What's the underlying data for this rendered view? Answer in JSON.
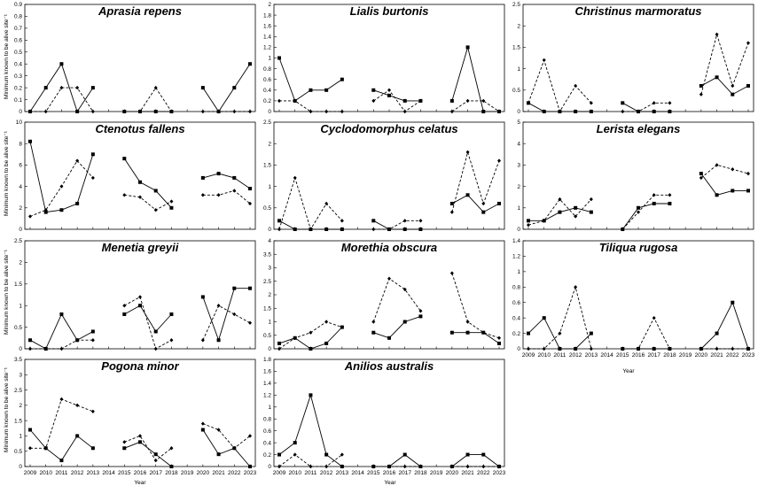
{
  "figure": {
    "ylabel": "Minimum known to be alive site⁻¹",
    "xlabel": "Year"
  },
  "chart_data": [
    {
      "type": "line",
      "title": "Aprasia repens",
      "x": [
        2009,
        2010,
        2011,
        2012,
        2013,
        2014,
        2015,
        2016,
        2017,
        2018,
        2019,
        2020,
        2021,
        2022,
        2023
      ],
      "ylim": [
        0,
        0.9
      ],
      "yticks": [
        0,
        0.1,
        0.2,
        0.3,
        0.4,
        0.5,
        0.6,
        0.7,
        0.8,
        0.9
      ],
      "xticks_shown": false,
      "series": [
        {
          "style": "solid-square",
          "values": [
            0,
            0.2,
            0.4,
            0,
            0.2,
            null,
            0,
            0,
            0,
            0,
            null,
            0.2,
            0,
            0.2,
            0.4
          ]
        },
        {
          "style": "dashed-diamond",
          "values": [
            0,
            0,
            0.2,
            0.2,
            0,
            null,
            0,
            0,
            0.2,
            0,
            null,
            0,
            0,
            0,
            0
          ]
        }
      ]
    },
    {
      "type": "line",
      "title": "Lialis burtonis",
      "x": [
        2009,
        2010,
        2011,
        2012,
        2013,
        2014,
        2015,
        2016,
        2017,
        2018,
        2019,
        2020,
        2021,
        2022,
        2023
      ],
      "ylim": [
        0,
        2
      ],
      "yticks": [
        0,
        0.2,
        0.4,
        0.6,
        0.8,
        1,
        1.2,
        1.4,
        1.6,
        1.8,
        2
      ],
      "xticks_shown": false,
      "series": [
        {
          "style": "solid-square",
          "values": [
            1,
            0.2,
            0.4,
            0.4,
            0.6,
            null,
            0.4,
            0.3,
            0.2,
            0.2,
            null,
            0.2,
            1.2,
            0,
            0
          ]
        },
        {
          "style": "dashed-diamond",
          "values": [
            0.2,
            0.2,
            0,
            0,
            0,
            null,
            0.2,
            0.4,
            0,
            0.2,
            null,
            0,
            0.2,
            0.2,
            0
          ]
        }
      ]
    },
    {
      "type": "line",
      "title": "Christinus marmoratus",
      "x": [
        2009,
        2010,
        2011,
        2012,
        2013,
        2014,
        2015,
        2016,
        2017,
        2018,
        2019,
        2020,
        2021,
        2022,
        2023
      ],
      "ylim": [
        0,
        2.5
      ],
      "yticks": [
        0,
        0.5,
        1,
        1.5,
        2,
        2.5
      ],
      "xticks_shown": false,
      "series": [
        {
          "style": "solid-square",
          "values": [
            0.2,
            0,
            0,
            0,
            0,
            null,
            0.2,
            0,
            0,
            0,
            null,
            0.6,
            0.8,
            0.4,
            0.6
          ]
        },
        {
          "style": "dashed-diamond",
          "values": [
            0.2,
            1.2,
            0,
            0.6,
            0.2,
            null,
            0,
            0,
            0.2,
            0.2,
            null,
            0.4,
            1.8,
            0.6,
            1.6
          ]
        }
      ]
    },
    {
      "type": "line",
      "title": "Ctenotus fallens",
      "x": [
        2009,
        2010,
        2011,
        2012,
        2013,
        2014,
        2015,
        2016,
        2017,
        2018,
        2019,
        2020,
        2021,
        2022,
        2023
      ],
      "ylim": [
        0,
        10
      ],
      "yticks": [
        0,
        2,
        4,
        6,
        8,
        10
      ],
      "xticks_shown": false,
      "series": [
        {
          "style": "solid-square",
          "values": [
            8.2,
            1.6,
            1.8,
            2.4,
            7,
            null,
            6.6,
            4.4,
            3.6,
            2,
            null,
            4.8,
            5.2,
            4.8,
            3.8
          ]
        },
        {
          "style": "dashed-diamond",
          "values": [
            1.2,
            1.8,
            4,
            6.4,
            4.8,
            null,
            3.2,
            3,
            1.8,
            2.6,
            null,
            3.2,
            3.2,
            3.6,
            2.4
          ]
        }
      ]
    },
    {
      "type": "line",
      "title": "Cyclodomorphus celatus",
      "x": [
        2009,
        2010,
        2011,
        2012,
        2013,
        2014,
        2015,
        2016,
        2017,
        2018,
        2019,
        2020,
        2021,
        2022,
        2023
      ],
      "ylim": [
        0,
        2.5
      ],
      "yticks": [
        0,
        0.5,
        1,
        1.5,
        2,
        2.5
      ],
      "xticks_shown": false,
      "series": [
        {
          "style": "solid-square",
          "values": [
            0.2,
            0,
            0,
            0,
            0,
            null,
            0.2,
            0,
            0,
            0,
            null,
            0.6,
            0.8,
            0.4,
            0.6
          ]
        },
        {
          "style": "dashed-diamond",
          "values": [
            0,
            1.2,
            0,
            0.6,
            0.2,
            null,
            0,
            0,
            0.2,
            0.2,
            null,
            0.4,
            1.8,
            0.6,
            1.6
          ]
        }
      ]
    },
    {
      "type": "line",
      "title": "Lerista elegans",
      "x": [
        2009,
        2010,
        2011,
        2012,
        2013,
        2014,
        2015,
        2016,
        2017,
        2018,
        2019,
        2020,
        2021,
        2022,
        2023
      ],
      "ylim": [
        0,
        5
      ],
      "yticks": [
        0,
        1,
        2,
        3,
        4,
        5
      ],
      "xticks_shown": false,
      "series": [
        {
          "style": "solid-square",
          "values": [
            0.4,
            0.4,
            0.8,
            1,
            0.8,
            null,
            0,
            1,
            1.2,
            1.2,
            null,
            2.6,
            1.6,
            1.8,
            1.8
          ]
        },
        {
          "style": "dashed-diamond",
          "values": [
            0.2,
            0.4,
            1.4,
            0.6,
            1.4,
            null,
            0,
            0.8,
            1.6,
            1.6,
            null,
            2.4,
            3,
            2.8,
            2.6
          ]
        }
      ]
    },
    {
      "type": "line",
      "title": "Menetia greyii",
      "x": [
        2009,
        2010,
        2011,
        2012,
        2013,
        2014,
        2015,
        2016,
        2017,
        2018,
        2019,
        2020,
        2021,
        2022,
        2023
      ],
      "ylim": [
        0,
        2.5
      ],
      "yticks": [
        0,
        0.5,
        1,
        1.5,
        2,
        2.5
      ],
      "xticks_shown": false,
      "series": [
        {
          "style": "solid-square",
          "values": [
            0.2,
            0,
            0.8,
            0.2,
            0.4,
            null,
            0.8,
            1,
            0.4,
            0.8,
            null,
            1.2,
            0.2,
            1.4,
            1.4
          ]
        },
        {
          "style": "dashed-diamond",
          "values": [
            0,
            0,
            0,
            0.2,
            0.2,
            null,
            1,
            1.2,
            0,
            0.2,
            null,
            0.2,
            1,
            0.8,
            0.6
          ]
        }
      ]
    },
    {
      "type": "line",
      "title": "Morethia obscura",
      "x": [
        2009,
        2010,
        2011,
        2012,
        2013,
        2014,
        2015,
        2016,
        2017,
        2018,
        2019,
        2020,
        2021,
        2022,
        2023
      ],
      "ylim": [
        0,
        4
      ],
      "yticks": [
        0,
        0.5,
        1,
        1.5,
        2,
        2.5,
        3,
        3.5,
        4
      ],
      "xticks_shown": false,
      "series": [
        {
          "style": "solid-square",
          "values": [
            0.2,
            0.4,
            0,
            0.2,
            0.8,
            null,
            0.6,
            0.4,
            1,
            1.2,
            null,
            0.6,
            0.6,
            0.6,
            0.2
          ]
        },
        {
          "style": "dashed-diamond",
          "values": [
            0,
            0.4,
            0.6,
            1,
            0.8,
            null,
            1,
            2.6,
            2.2,
            1.4,
            null,
            2.8,
            1,
            0.6,
            0.4
          ]
        }
      ]
    },
    {
      "type": "line",
      "title": "Tiliqua rugosa",
      "x": [
        2009,
        2010,
        2011,
        2012,
        2013,
        2014,
        2015,
        2016,
        2017,
        2018,
        2019,
        2020,
        2021,
        2022,
        2023
      ],
      "ylim": [
        0,
        1.4
      ],
      "yticks": [
        0,
        0.2,
        0.4,
        0.6,
        0.8,
        1,
        1.2,
        1.4
      ],
      "xticks_shown": true,
      "series": [
        {
          "style": "solid-square",
          "values": [
            0.2,
            0.4,
            0,
            0,
            0.2,
            null,
            0,
            0,
            0,
            0,
            null,
            0,
            0.2,
            0.6,
            0
          ]
        },
        {
          "style": "dashed-diamond",
          "values": [
            0,
            0,
            0.2,
            0.8,
            0,
            null,
            0,
            0,
            0.4,
            0,
            null,
            0,
            0,
            0,
            0
          ]
        }
      ]
    },
    {
      "type": "line",
      "title": "Pogona minor",
      "x": [
        2009,
        2010,
        2011,
        2012,
        2013,
        2014,
        2015,
        2016,
        2017,
        2018,
        2019,
        2020,
        2021,
        2022,
        2023
      ],
      "ylim": [
        0,
        3.5
      ],
      "yticks": [
        0,
        0.5,
        1,
        1.5,
        2,
        2.5,
        3,
        3.5
      ],
      "xticks_shown": true,
      "series": [
        {
          "style": "solid-square",
          "values": [
            1.2,
            0.6,
            0.2,
            1,
            0.6,
            null,
            0.6,
            0.8,
            0.4,
            0,
            null,
            1.2,
            0.4,
            0.6,
            0
          ]
        },
        {
          "style": "dashed-diamond",
          "values": [
            0.6,
            0.6,
            2.2,
            2,
            1.8,
            null,
            0.8,
            1,
            0.2,
            0.6,
            null,
            1.4,
            1.2,
            0.6,
            1
          ]
        }
      ]
    },
    {
      "type": "line",
      "title": "Anilios australis",
      "x": [
        2009,
        2010,
        2011,
        2012,
        2013,
        2014,
        2015,
        2016,
        2017,
        2018,
        2019,
        2020,
        2021,
        2022,
        2023
      ],
      "ylim": [
        0,
        1.8
      ],
      "yticks": [
        0,
        0.2,
        0.4,
        0.6,
        0.8,
        1,
        1.2,
        1.4,
        1.6,
        1.8
      ],
      "xticks_shown": true,
      "series": [
        {
          "style": "solid-square",
          "values": [
            0.2,
            0.4,
            1.2,
            0.2,
            0,
            null,
            0,
            0,
            0.2,
            0,
            null,
            0,
            0.2,
            0.2,
            0
          ]
        },
        {
          "style": "dashed-diamond",
          "values": [
            0,
            0.2,
            0,
            0,
            0.2,
            null,
            0,
            0,
            0,
            0,
            null,
            0,
            0,
            0,
            0
          ]
        }
      ]
    }
  ]
}
